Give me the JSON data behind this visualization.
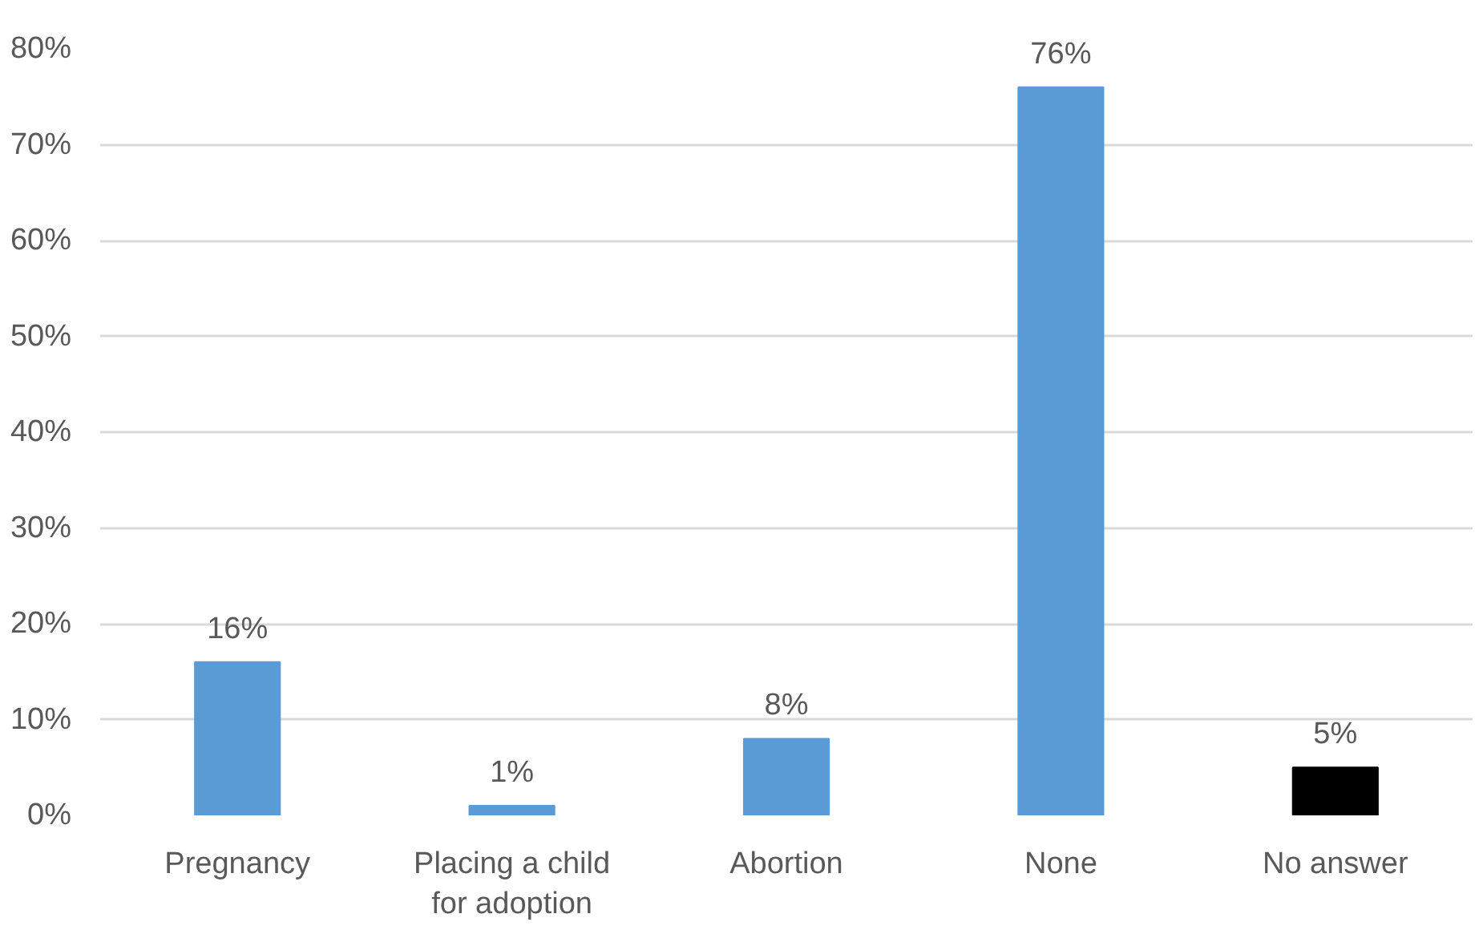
{
  "chart_data": {
    "type": "bar",
    "categories": [
      "Pregnancy",
      "Placing a child for adoption",
      "Abortion",
      "None",
      "No answer"
    ],
    "values": [
      16,
      1,
      8,
      76,
      5
    ],
    "colors": [
      "#5b9bd5",
      "#5b9bd5",
      "#5b9bd5",
      "#5b9bd5",
      "#000000"
    ],
    "value_labels": [
      "16%",
      "1%",
      "8%",
      "76%",
      "5%"
    ],
    "ylim": [
      0,
      80
    ],
    "yticks": [
      {
        "value": 0,
        "label": "0%"
      },
      {
        "value": 10,
        "label": "10%"
      },
      {
        "value": 20,
        "label": "20%"
      },
      {
        "value": 30,
        "label": "30%"
      },
      {
        "value": 40,
        "label": "40%"
      },
      {
        "value": 50,
        "label": "50%"
      },
      {
        "value": 60,
        "label": "60%"
      },
      {
        "value": 70,
        "label": "70%"
      },
      {
        "value": 80,
        "label": "80%"
      }
    ],
    "grid": "y"
  }
}
